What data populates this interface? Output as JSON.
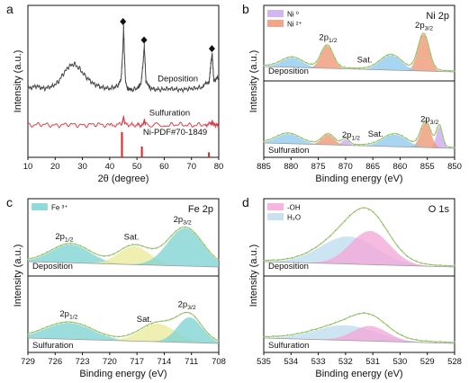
{
  "colors": {
    "axis": "#111111",
    "teal_fill": "#7fd3d2",
    "teal_line": "#3fb0b3",
    "yellow_fill": "#ecea9c",
    "envelope": "#9ccc6a",
    "raw_dots": "#888888",
    "salmon_fill": "#ee9775",
    "violet_fill": "#caa9f0",
    "blue_fill": "#8ec9ee",
    "pink_fill": "#f3a8d8",
    "lightblue_fill": "#bfdcef",
    "xrd_deposition": "#444444",
    "xrd_sulfuration": "#d9434f",
    "pdf_bars": "#d9241f",
    "baseline": "#999999"
  },
  "chart_data": [
    {
      "id": "a",
      "type": "line",
      "panel_letter": "a",
      "xlabel": "2θ (degree)",
      "ylabel": "Intensity (a.u.)",
      "xlim": [
        10,
        80
      ],
      "xticks": [
        10,
        20,
        30,
        40,
        50,
        60,
        70,
        80
      ],
      "series": [
        {
          "name": "Deposition",
          "x": [
            10,
            13,
            16,
            19,
            21,
            23,
            25,
            27,
            29,
            31,
            34,
            37,
            40,
            43,
            44.2,
            44.8,
            45.1,
            45.4,
            45.8,
            46.5,
            48,
            50,
            51.5,
            52.3,
            52.7,
            53.3,
            55,
            58,
            62,
            66,
            70,
            74,
            76.5,
            77.2,
            77.6,
            78.2,
            80
          ],
          "y": [
            0.5,
            0.52,
            0.5,
            0.52,
            0.55,
            0.62,
            0.68,
            0.7,
            0.66,
            0.6,
            0.54,
            0.51,
            0.5,
            0.52,
            0.58,
            0.8,
            1.0,
            0.78,
            0.56,
            0.5,
            0.49,
            0.5,
            0.54,
            0.72,
            0.85,
            0.56,
            0.5,
            0.49,
            0.5,
            0.49,
            0.5,
            0.51,
            0.56,
            0.72,
            0.78,
            0.56,
            0.6
          ]
        },
        {
          "name": "Sulfuration",
          "x": [
            10,
            15,
            20,
            25,
            30,
            35,
            40,
            44.5,
            45.1,
            45.6,
            50,
            52.2,
            52.7,
            53.2,
            60,
            65,
            70,
            75,
            77.2,
            77.6,
            78.2,
            80
          ],
          "y": [
            0.2,
            0.21,
            0.2,
            0.21,
            0.2,
            0.21,
            0.2,
            0.21,
            0.27,
            0.21,
            0.2,
            0.21,
            0.24,
            0.21,
            0.2,
            0.21,
            0.2,
            0.21,
            0.21,
            0.23,
            0.21,
            0.2
          ]
        }
      ],
      "peak_markers": [
        44.9,
        52.6,
        77.5
      ],
      "reference": {
        "name": "Ni-PDF#70-1849",
        "x": [
          44.5,
          51.8,
          76.4
        ],
        "height": [
          1.0,
          0.43,
          0.2
        ]
      }
    },
    {
      "id": "b",
      "type": "area",
      "panel_letter": "b",
      "title": "Ni 2p",
      "xlabel": "Binding energy (eV)",
      "ylabel": "Intensity (a.u.)",
      "xlim": [
        885,
        850
      ],
      "xticks": [
        885,
        880,
        875,
        870,
        865,
        860,
        855,
        850
      ],
      "legend": [
        "Ni ⁰",
        "Ni ²⁺"
      ],
      "subpanels": [
        {
          "label": "Deposition",
          "annotations": [
            {
              "text": "2p",
              "sub": "1/2",
              "x": 873.2
            },
            {
              "text": "2p",
              "sub": "3/2",
              "x": 855.6
            },
            {
              "text": "Sat.",
              "x": 866.5
            }
          ],
          "components": [
            {
              "name": "Ni²⁺ 2p1/2",
              "center": 873.4,
              "fwhm": 2.6,
              "amp": 0.38,
              "color": "salmon_fill"
            },
            {
              "name": "Ni²⁺ 2p3/2",
              "center": 855.7,
              "fwhm": 2.4,
              "amp": 0.62,
              "color": "salmon_fill"
            },
            {
              "name": "Sat. 1",
              "center": 879.8,
              "fwhm": 4.5,
              "amp": 0.16,
              "color": "blue_fill"
            },
            {
              "name": "Sat. 2",
              "center": 861.7,
              "fwhm": 4.5,
              "amp": 0.25,
              "color": "blue_fill"
            }
          ]
        },
        {
          "label": "Sulfuration",
          "annotations": [
            {
              "text": "2p",
              "sub": "1/2",
              "x": 869.0
            },
            {
              "text": "2p",
              "sub": "3/2",
              "x": 854.6
            },
            {
              "text": "Sat.",
              "x": 864.5
            }
          ],
          "components": [
            {
              "name": "Ni⁰ 2p1/2",
              "center": 870.0,
              "fwhm": 1.5,
              "amp": 0.1,
              "color": "violet_fill"
            },
            {
              "name": "Ni⁰ 2p3/2",
              "center": 852.8,
              "fwhm": 1.3,
              "amp": 0.36,
              "color": "violet_fill"
            },
            {
              "name": "Ni²⁺ 2p1/2",
              "center": 873.2,
              "fwhm": 2.6,
              "amp": 0.17,
              "color": "salmon_fill"
            },
            {
              "name": "Ni²⁺ 2p3/2",
              "center": 855.3,
              "fwhm": 2.2,
              "amp": 0.42,
              "color": "salmon_fill"
            },
            {
              "name": "Sat. 1",
              "center": 880.5,
              "fwhm": 5.0,
              "amp": 0.16,
              "color": "blue_fill"
            },
            {
              "name": "Sat. 2",
              "center": 861.0,
              "fwhm": 5.0,
              "amp": 0.2,
              "color": "blue_fill"
            }
          ]
        }
      ]
    },
    {
      "id": "c",
      "type": "area",
      "panel_letter": "c",
      "title": "Fe 2p",
      "xlabel": "Binding energy (eV)",
      "ylabel": "Intensity (a.u.)",
      "xlim": [
        729,
        708
      ],
      "xticks": [
        729,
        726,
        723,
        720,
        717,
        714,
        711,
        708
      ],
      "legend": [
        "Fe ³⁺"
      ],
      "subpanels": [
        {
          "label": "Deposition",
          "annotations": [
            {
              "text": "2p",
              "sub": "1/2",
              "x": 725.0
            },
            {
              "text": "2p",
              "sub": "3/2",
              "x": 712.0
            },
            {
              "text": "Sat.",
              "x": 717.6
            }
          ],
          "components": [
            {
              "name": "Fe³⁺ 2p1/2",
              "center": 724.3,
              "fwhm": 5.0,
              "amp": 0.3,
              "color": "teal_fill"
            },
            {
              "name": "Sat.",
              "center": 717.3,
              "fwhm": 4.0,
              "amp": 0.3,
              "color": "yellow_fill"
            },
            {
              "name": "Fe³⁺ 2p3/2",
              "center": 711.7,
              "fwhm": 4.5,
              "amp": 0.62,
              "color": "teal_fill"
            }
          ]
        },
        {
          "label": "Sulfuration",
          "annotations": [
            {
              "text": "2p",
              "sub": "1/2",
              "x": 724.5
            },
            {
              "text": "2p",
              "sub": "3/2",
              "x": 711.5
            },
            {
              "text": "Sat.",
              "x": 716.2
            }
          ],
          "components": [
            {
              "name": "Fe³⁺ 2p1/2",
              "center": 724.5,
              "fwhm": 6.0,
              "amp": 0.27,
              "color": "teal_fill"
            },
            {
              "name": "Sat.",
              "center": 714.7,
              "fwhm": 4.5,
              "amp": 0.3,
              "color": "yellow_fill"
            },
            {
              "name": "Fe³⁺ 2p3/2",
              "center": 711.2,
              "fwhm": 3.2,
              "amp": 0.42,
              "color": "teal_fill"
            }
          ]
        }
      ]
    },
    {
      "id": "d",
      "type": "area",
      "panel_letter": "d",
      "title": "O 1s",
      "xlabel": "Binding energy (eV)",
      "ylabel": "Intensity (a.u.)",
      "xlim": [
        535,
        528
      ],
      "xticks": [
        535,
        534,
        533,
        532,
        531,
        530,
        529,
        528
      ],
      "legend": [
        "-OH",
        "H₂O"
      ],
      "subpanels": [
        {
          "label": "Deposition",
          "annotations": [],
          "components": [
            {
              "name": "H₂O",
              "center": 531.9,
              "fwhm": 2.4,
              "amp": 0.45,
              "color": "lightblue_fill"
            },
            {
              "name": "-OH",
              "center": 531.1,
              "fwhm": 1.7,
              "amp": 0.55,
              "color": "pink_fill"
            }
          ]
        },
        {
          "label": "Sulfuration",
          "annotations": [],
          "components": [
            {
              "name": "H₂O",
              "center": 532.0,
              "fwhm": 2.6,
              "amp": 0.25,
              "color": "lightblue_fill"
            },
            {
              "name": "-OH",
              "center": 531.1,
              "fwhm": 1.5,
              "amp": 0.25,
              "color": "pink_fill"
            }
          ]
        }
      ]
    }
  ]
}
